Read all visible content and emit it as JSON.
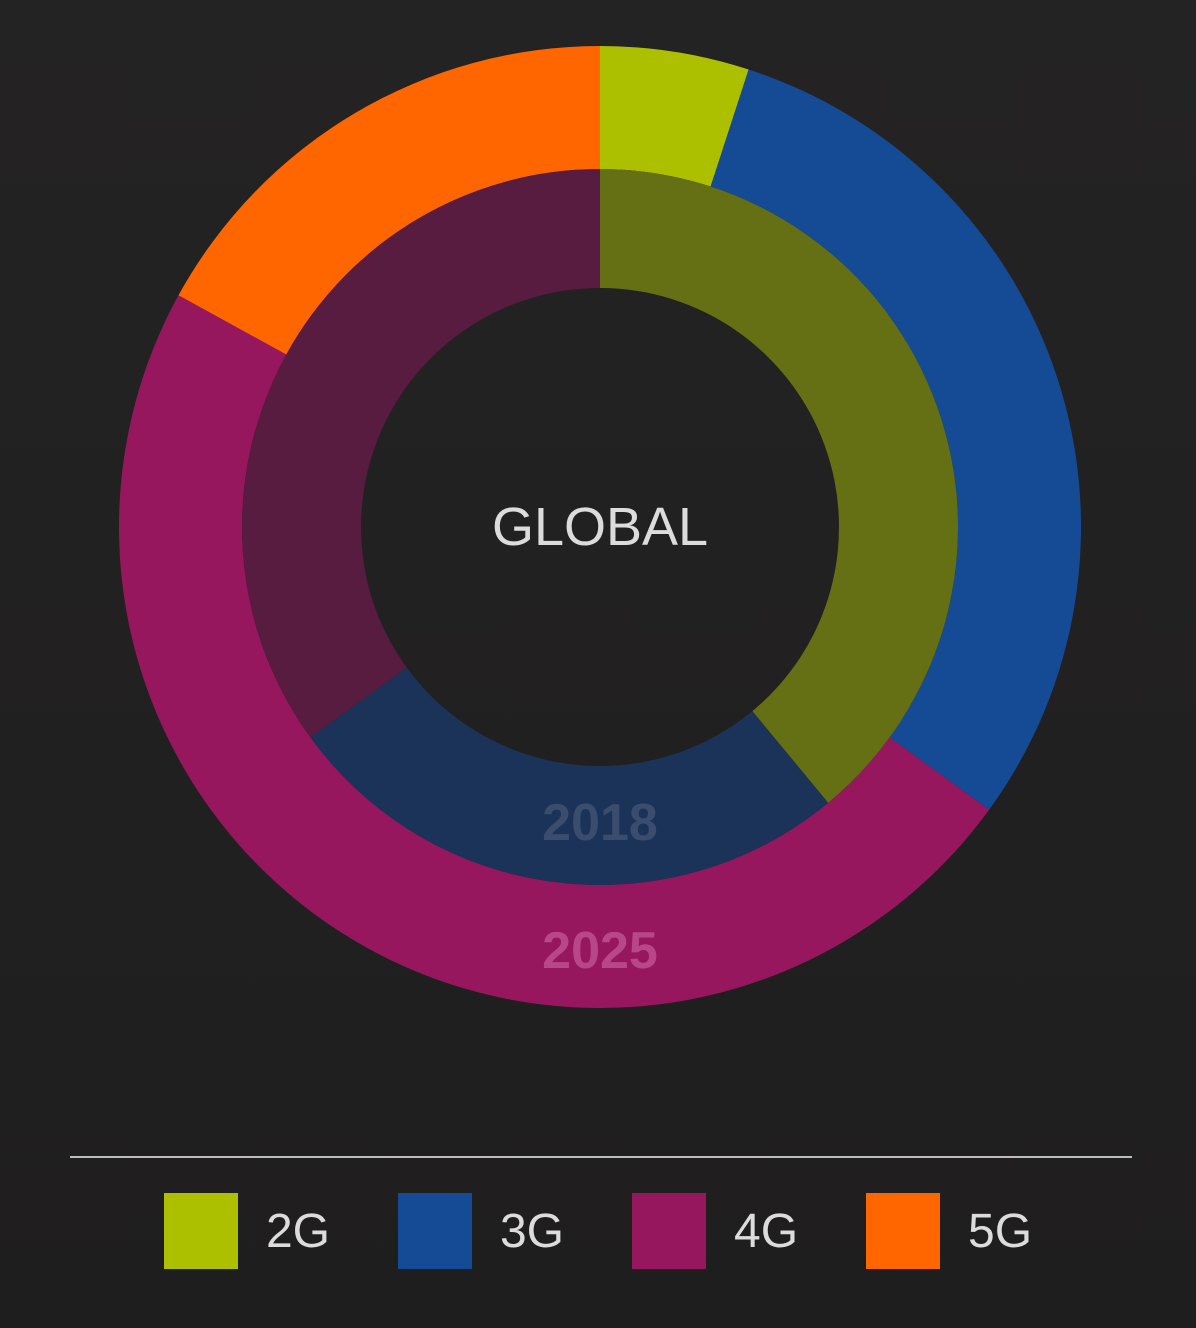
{
  "chart_data": {
    "type": "donut",
    "center_label": "GLOBAL",
    "categories": [
      "2G",
      "3G",
      "4G",
      "5G"
    ],
    "colors": {
      "2G": "#adc000",
      "3G": "#154b94",
      "4G": "#97175e",
      "5G": "#ff6600"
    },
    "inner_colors": {
      "2G": "#656f13",
      "3G": "#1c3359",
      "4G": "#571c3f",
      "5G": "#ff6600"
    },
    "series": [
      {
        "name": "2018",
        "values": [
          39,
          26,
          35,
          0
        ]
      },
      {
        "name": "2025",
        "values": [
          5,
          30,
          48,
          17
        ]
      }
    ],
    "legend": {
      "placement": "bottom"
    }
  }
}
